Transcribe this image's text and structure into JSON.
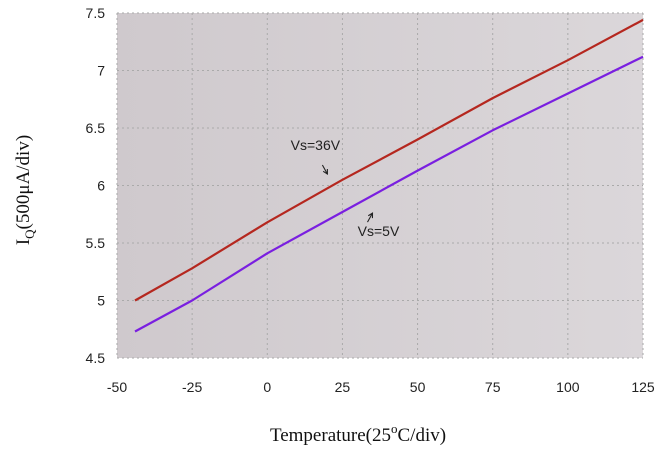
{
  "chart_data": {
    "type": "line",
    "x": [
      -44,
      -25,
      0,
      25,
      50,
      75,
      100,
      125
    ],
    "series": [
      {
        "name": "Vs=36V",
        "color": "#b5271f",
        "values": [
          5.0,
          5.28,
          5.68,
          6.05,
          6.4,
          6.76,
          7.09,
          7.44
        ]
      },
      {
        "name": "Vs=5V",
        "color": "#7a1fe0",
        "values": [
          4.73,
          5.0,
          5.41,
          5.77,
          6.13,
          6.48,
          6.8,
          7.12
        ]
      }
    ],
    "xlabel": {
      "main": "Temperature(25",
      "sup": "o",
      "tail": "C/div)"
    },
    "ylabel": {
      "main": "I",
      "sub": "Q",
      "tail": "(500μA/div)"
    },
    "xlim": [
      -50,
      125
    ],
    "ylim": [
      4.5,
      7.5
    ],
    "xticks": [
      "-50",
      "-25",
      "0",
      "25",
      "50",
      "75",
      "100",
      "125"
    ],
    "yticks": [
      "4.5",
      "5",
      "5.5",
      "6",
      "6.5",
      "7",
      "7.5"
    ],
    "grid": true,
    "plot_background": "#d8d3d6",
    "grid_color": "#aaaaaa",
    "annotations": [
      {
        "text": "Vs=36V",
        "x": 16,
        "y": 6.31,
        "arrow_x": 20,
        "arrow_y": 6.1
      },
      {
        "text": "Vs=5V",
        "x": 37,
        "y": 5.56,
        "arrow_x": 35,
        "arrow_y": 5.76
      }
    ]
  }
}
